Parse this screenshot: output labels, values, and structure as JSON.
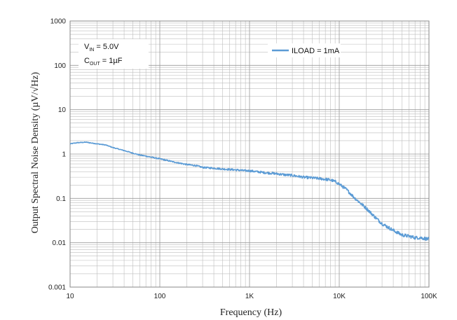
{
  "chart_data": {
    "type": "line",
    "x_scale": "log",
    "y_scale": "log",
    "xlim": [
      10,
      100000
    ],
    "ylim": [
      0.001,
      1000
    ],
    "xlabel": "Frequency (Hz)",
    "ylabel": "Output Spectral Noise Density  (µV/√Hz)",
    "x_ticks": [
      {
        "value": 10,
        "label": "10"
      },
      {
        "value": 100,
        "label": "100"
      },
      {
        "value": 1000,
        "label": "1K"
      },
      {
        "value": 10000,
        "label": "10K"
      },
      {
        "value": 100000,
        "label": "100K"
      }
    ],
    "y_ticks": [
      {
        "value": 0.001,
        "label": "0.001"
      },
      {
        "value": 0.01,
        "label": "0.01"
      },
      {
        "value": 0.1,
        "label": "0.1"
      },
      {
        "value": 1,
        "label": "1"
      },
      {
        "value": 10,
        "label": "10"
      },
      {
        "value": 100,
        "label": "100"
      },
      {
        "value": 1000,
        "label": "1000"
      }
    ],
    "grid": true,
    "legend_position": "top-right",
    "annotations": {
      "vin": {
        "main": "V",
        "sub": "IN",
        "value": " = 5.0V"
      },
      "cout": {
        "main": "C",
        "sub": "OUT",
        "value": " = 1µF"
      }
    },
    "series": [
      {
        "name": "ILOAD = 1mA",
        "color": "#5B9BD5",
        "x": [
          10,
          12,
          15,
          20,
          25,
          30,
          40,
          50,
          60,
          70,
          80,
          100,
          120,
          150,
          200,
          250,
          300,
          400,
          500,
          600,
          700,
          800,
          900,
          1000,
          1200,
          1500,
          2000,
          2500,
          3000,
          4000,
          5000,
          6000,
          7000,
          8000,
          9000,
          10000,
          12000,
          15000,
          20000,
          25000,
          30000,
          40000,
          50000,
          60000,
          70000,
          80000,
          100000
        ],
        "y": [
          1.7,
          1.8,
          1.85,
          1.7,
          1.6,
          1.4,
          1.2,
          1.05,
          0.95,
          0.9,
          0.85,
          0.78,
          0.72,
          0.65,
          0.58,
          0.55,
          0.5,
          0.48,
          0.46,
          0.45,
          0.44,
          0.43,
          0.42,
          0.42,
          0.4,
          0.38,
          0.36,
          0.34,
          0.33,
          0.3,
          0.29,
          0.28,
          0.27,
          0.26,
          0.24,
          0.21,
          0.16,
          0.1,
          0.06,
          0.038,
          0.027,
          0.019,
          0.015,
          0.014,
          0.013,
          0.013,
          0.012
        ]
      }
    ]
  }
}
